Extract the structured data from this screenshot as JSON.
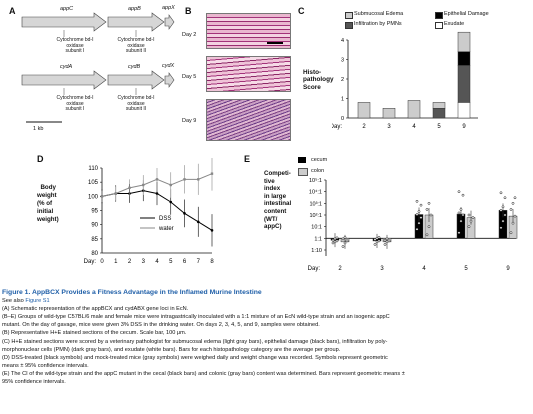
{
  "panels": {
    "A": "A",
    "B": "B",
    "C": "C",
    "D": "D",
    "E": "E"
  },
  "panelA": {
    "row1": {
      "genes": [
        "appC",
        "appB",
        "appX"
      ],
      "subunits": [
        "Cytochrome bd-I\noxidase\nsubunit I",
        "Cytochrome bd-I\noxidase\nsubunit II"
      ]
    },
    "row2": {
      "genes": [
        "cydA",
        "cydB",
        "cydX"
      ],
      "subunits": [
        "Cytochrome bd-I\noxidase\nsubunit I",
        "Cytochrome bd-I\noxidase\nsubunit II"
      ]
    },
    "scale": "1 kb"
  },
  "panelB": {
    "days": [
      "Day 2",
      "Day 5",
      "Day 9"
    ]
  },
  "panelC": {
    "ylabel": "Histo-\npathology\nScore",
    "legend": [
      "Submucosal Edema",
      "Epithelial Damage",
      "Infiltration by PMNs",
      "Exudate"
    ],
    "xlabel": "Day:",
    "days": [
      "2",
      "3",
      "4",
      "5",
      "9"
    ]
  },
  "panelD": {
    "ylabel": "Body\nweight\n(% of\ninitial\nweight)",
    "xlabel": "Day:",
    "legend": [
      "DSS",
      "water"
    ]
  },
  "panelE": {
    "ylabel": "Competi-\ntive\nindex\nin large\nintestinal\ncontent\n(WT/\nappC)",
    "legend": [
      "cecum",
      "colon"
    ],
    "xlabel": "Day:",
    "days": [
      "2",
      "3",
      "4",
      "5",
      "9"
    ]
  },
  "chart_data": [
    {
      "type": "bar",
      "categories": [
        "2",
        "3",
        "4",
        "5",
        "9"
      ],
      "xlabel": "Day:",
      "ylabel": "Histopathology Score",
      "ylim": [
        0,
        4
      ],
      "yticks": [
        "0",
        "1",
        "2",
        "3",
        "4"
      ],
      "series": [
        {
          "name": "Exudate",
          "values": [
            0,
            0,
            0,
            0,
            0.8
          ],
          "color": "#ffffff"
        },
        {
          "name": "Infiltration by PMNs",
          "values": [
            0,
            0,
            0,
            0.5,
            1.9
          ],
          "color": "#555555"
        },
        {
          "name": "Epithelial Damage",
          "values": [
            0,
            0,
            0,
            0,
            0.7
          ],
          "color": "#000000"
        },
        {
          "name": "Submucosal Edema",
          "values": [
            0.8,
            0.5,
            0.9,
            0.3,
            1.0
          ],
          "color": "#cccccc"
        }
      ]
    },
    {
      "type": "line",
      "x": [
        0,
        1,
        2,
        3,
        4,
        5,
        6,
        7,
        8
      ],
      "xlabel": "Day:",
      "ylabel": "Body weight (% of initial weight)",
      "ylim": [
        80,
        110
      ],
      "yticks": [
        "80",
        "85",
        "90",
        "95",
        "100",
        "105",
        "110"
      ],
      "series": [
        {
          "name": "DSS",
          "values": [
            100,
            101,
            101,
            102,
            101,
            98,
            94,
            91,
            88
          ],
          "color": "#000000"
        },
        {
          "name": "water",
          "values": [
            100,
            101,
            103,
            104,
            106,
            104,
            106,
            106,
            108
          ],
          "color": "#888888"
        }
      ]
    },
    {
      "type": "scatter",
      "categories": [
        "2",
        "3",
        "4",
        "5",
        "9"
      ],
      "xlabel": "Day:",
      "ylabel": "Competitive index in large intestinal content (WT/appC)",
      "log_scale": true,
      "ylim": [
        0.1,
        100000
      ],
      "yticks": [
        "1:10",
        "1:1",
        "10:1",
        "10²:1",
        "10³:1",
        "10⁴:1",
        "10⁵:1"
      ],
      "series": [
        {
          "name": "cecum",
          "values": [
            0.7,
            0.6,
            110,
            120,
            250
          ],
          "color": "#000000",
          "points": [
            [
              0.4,
              0.5,
              0.6,
              0.7,
              0.9,
              1.1
            ],
            [
              0.3,
              0.5,
              0.6,
              0.8,
              1.0,
              1.2
            ],
            [
              6,
              20,
              60,
              110,
              200,
              700,
              1500
            ],
            [
              3,
              30,
              100,
              150,
              300,
              5000,
              10000
            ],
            [
              8,
              30,
              100,
              250,
              500,
              3000,
              8000
            ]
          ]
        },
        {
          "name": "colon",
          "values": [
            0.5,
            0.5,
            100,
            60,
            80
          ],
          "color": "#cccccc",
          "points": [
            [
              0.2,
              0.4,
              0.6,
              0.9,
              1.2
            ],
            [
              0.3,
              0.5,
              0.6,
              0.7,
              0.9
            ],
            [
              2,
              10,
              100,
              300,
              1000
            ],
            [
              10,
              30,
              60,
              100
            ],
            [
              3,
              20,
              80,
              300,
              1000,
              3000
            ]
          ]
        }
      ]
    }
  ],
  "caption": {
    "title": "Figure 1. AppBCX Provides a Fitness Advantage in the Inflamed Murine Intestine",
    "see": "See also",
    "see_link": "Figure S1",
    "lines": [
      "(A) Schematic representation of the appBCX and cydABX gene loci in EcN.",
      "(B–E) Groups of wild-type C57BL/6 male and female mice were intragastrically inoculated with a 1:1 mixture of an EcN wild-type strain and an isogenic appC",
      "mutant. On the day of gavage, mice were given 3% DSS in the drinking water. On days 2, 3, 4, 5, and 9, samples were obtained.",
      "(B) Representative H+E stained sections of the cecum. Scale bar, 100 μm.",
      "(C) H+E stained sections were scored by a veterinary pathologist for submucosal edema (light gray bars), epithelial damage (black bars), infiltration by poly-",
      "morphonuclear cells (PMN) (dark gray bars), and exudate (white bars). Bars for each histopathology category are the average per group.",
      "(D) DSS-treated (black symbols) and mock-treated mice (gray symbols) were weighed daily and weight change was recorded. Symbols represent geometric",
      "means ± 95% confidence intervals.",
      "(E) The CI of the wild-type strain and the appC mutant in the cecal (black bars) and colonic (gray bars) content was determined. Bars represent geometric means ±",
      "95% confidence intervals."
    ]
  }
}
